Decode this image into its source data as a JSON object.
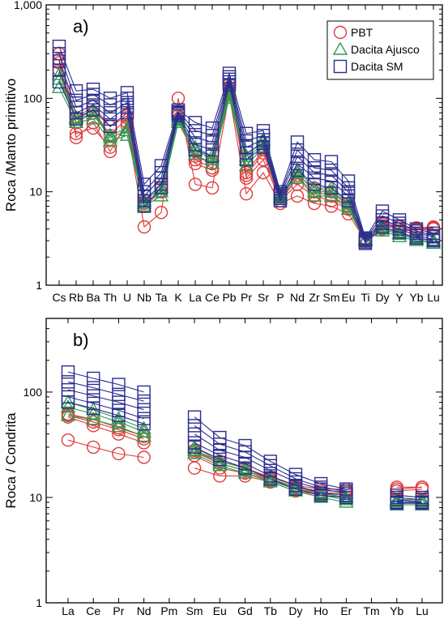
{
  "chart_data": [
    {
      "panel_label": "a)",
      "type": "line",
      "y_scale": "log",
      "ylabel": "Roca /Manto primitivo",
      "ylim": [
        1,
        1000
      ],
      "y_ticks": [
        {
          "value": 1,
          "label": "1"
        },
        {
          "value": 10,
          "label": "10"
        },
        {
          "value": 100,
          "label": "100"
        },
        {
          "value": 1000,
          "label": "1,000"
        }
      ],
      "categories": [
        "Cs",
        "Rb",
        "Ba",
        "Th",
        "U",
        "Nb",
        "Ta",
        "K",
        "La",
        "Ce",
        "Pb",
        "Pr",
        "Sr",
        "P",
        "Nd",
        "Zr",
        "Sm",
        "Eu",
        "Ti",
        "Dy",
        "Y",
        "Yb",
        "Lu"
      ],
      "legend": {
        "position": "top-right",
        "entries": [
          "PBT",
          "Dacita Ajusco",
          "Dacita SM"
        ]
      },
      "groups": [
        {
          "name": "PBT",
          "color": "#e03a3a",
          "marker": "circle",
          "samples": [
            [
              240,
              42,
              48,
              30,
              50,
              4.2,
              6.0,
              100,
              12,
              11,
              110,
              9.5,
              16,
              7.5,
              9,
              7.5,
              7,
              5.8,
              3.0,
              4.0,
              3.8,
              3.9,
              4.1
            ],
            [
              260,
              38,
              55,
              27,
              55,
              7.0,
              10,
              70,
              20,
              17,
              120,
              14,
              22,
              8,
              12,
              9,
              8,
              6.5,
              3.0,
              4.3,
              4.0,
              3.9,
              4.0
            ],
            [
              300,
              55,
              70,
              40,
              62,
              7.5,
              10,
              65,
              22,
              18,
              130,
              15,
              26,
              8,
              14,
              10,
              9,
              7,
              3.2,
              4.5,
              4.2,
              4.0,
              4.1
            ],
            [
              200,
              62,
              82,
              50,
              65,
              8.0,
              11,
              60,
              24,
              20,
              140,
              16,
              28,
              9,
              15,
              11,
              10,
              7.5,
              3.1,
              4.7,
              4.3,
              4.1,
              4.2
            ]
          ]
        },
        {
          "name": "Dacita Ajusco",
          "color": "#2e9a4e",
          "marker": "triangle",
          "samples": [
            [
              130,
              55,
              60,
              35,
              40,
              7,
              9,
              55,
              25,
              20,
              100,
              19,
              30,
              8.5,
              14,
              9,
              9,
              6.5,
              3.0,
              3.8,
              3.3,
              3.0,
              2.8
            ],
            [
              160,
              60,
              68,
              38,
              45,
              7.5,
              10,
              58,
              28,
              22,
              110,
              22,
              34,
              9,
              16,
              10,
              10,
              7,
              3.0,
              4.0,
              3.5,
              3.1,
              2.9
            ],
            [
              180,
              62,
              75,
              40,
              48,
              8,
              11,
              60,
              30,
              24,
              120,
              24,
              36,
              9.5,
              17,
              11,
              11,
              7.5,
              3.1,
              4.2,
              3.6,
              3.2,
              3.0
            ]
          ]
        },
        {
          "name": "Dacita SM",
          "color": "#2b2d8f",
          "marker": "square",
          "samples": [
            [
              360,
              120,
              125,
              100,
              115,
              12,
              19,
              75,
              55,
              48,
              185,
              42,
              45,
              10,
              34,
              22,
              21,
              13,
              3.2,
              6.2,
              5.0,
              4.0,
              3.6
            ],
            [
              300,
              95,
              110,
              85,
              100,
              10,
              16,
              72,
              45,
              40,
              170,
              35,
              40,
              9.5,
              28,
              18,
              17,
              11,
              3.1,
              5.5,
              4.6,
              3.8,
              3.4
            ],
            [
              250,
              80,
              95,
              70,
              90,
              9,
              14,
              70,
              38,
              34,
              160,
              30,
              36,
              9,
              24,
              16,
              15,
              10,
              3.0,
              5.0,
              4.3,
              3.6,
              3.3
            ],
            [
              200,
              70,
              85,
              60,
              80,
              8,
              12,
              68,
              32,
              28,
              150,
              26,
              33,
              8.5,
              20,
              14,
              13,
              9,
              2.9,
              4.6,
              4.0,
              3.4,
              3.1
            ],
            [
              150,
              60,
              75,
              50,
              70,
              7,
              11,
              65,
              28,
              24,
              140,
              22,
              30,
              8,
              17,
              12,
              11,
              8,
              2.8,
              4.2,
              3.7,
              3.2,
              3.0
            ]
          ]
        }
      ]
    },
    {
      "panel_label": "b)",
      "type": "line",
      "y_scale": "log",
      "ylabel": "Roca / Condrita",
      "ylim": [
        1,
        500
      ],
      "y_ticks": [
        {
          "value": 1,
          "label": "1"
        },
        {
          "value": 10,
          "label": "10"
        },
        {
          "value": 100,
          "label": "100"
        }
      ],
      "categories": [
        "La",
        "Ce",
        "Pr",
        "Nd",
        "Pm",
        "Sm",
        "Eu",
        "Gd",
        "Tb",
        "Dy",
        "Ho",
        "Er",
        "Tm",
        "Yb",
        "Lu"
      ],
      "groups": [
        {
          "name": "PBT",
          "color": "#e03a3a",
          "marker": "circle",
          "samples": [
            [
              35,
              30,
              26,
              24,
              null,
              19,
              16,
              16,
              14,
              11.5,
              10.5,
              10,
              null,
              9.5,
              9.5
            ],
            [
              58,
              48,
              40,
              33,
              null,
              25,
              19,
              17,
              14.5,
              12,
              11,
              11,
              null,
              11.5,
              12
            ],
            [
              60,
              52,
              44,
              36,
              null,
              27,
              21,
              18,
              15,
              12.5,
              11.5,
              11.5,
              null,
              12,
              12.5
            ],
            [
              62,
              55,
              46,
              38,
              null,
              28,
              22,
              19,
              15.5,
              13,
              12,
              12,
              null,
              12.5,
              12.5
            ]
          ]
        },
        {
          "name": "Dacita Ajusco",
          "color": "#2e9a4e",
          "marker": "triangle",
          "samples": [
            [
              60,
              55,
              47,
              38,
              null,
              26,
              20,
              17,
              14,
              11.5,
              10,
              9,
              null,
              8.5,
              8.5
            ],
            [
              72,
              62,
              52,
              42,
              null,
              28,
              21,
              18,
              14.5,
              12,
              10.5,
              9.5,
              null,
              9,
              9
            ],
            [
              80,
              68,
              56,
              45,
              null,
              30,
              22,
              19,
              15,
              12.5,
              11,
              10,
              null,
              9.5,
              9.5
            ]
          ]
        },
        {
          "name": "Dacita SM",
          "color": "#2b2d8f",
          "marker": "square",
          "samples": [
            [
              155,
              135,
              118,
              100,
              null,
              58,
              37,
              31,
              22,
              16.5,
              13.5,
              12,
              null,
              10.5,
              10
            ],
            [
              125,
              110,
              95,
              82,
              null,
              48,
              32,
              27,
              20,
              15,
              12.5,
              11.5,
              null,
              10,
              9.5
            ],
            [
              105,
              92,
              80,
              68,
              null,
              40,
              28,
              24,
              18,
              14,
              12,
              11,
              null,
              9.5,
              9
            ],
            [
              90,
              78,
              67,
              56,
              null,
              33,
              25,
              21,
              16,
              13,
              11,
              10.5,
              null,
              9,
              9
            ],
            [
              80,
              70,
              60,
              50,
              null,
              30,
              23,
              19,
              15,
              12,
              10.5,
              10,
              null,
              8.8,
              8.8
            ]
          ]
        }
      ]
    }
  ]
}
